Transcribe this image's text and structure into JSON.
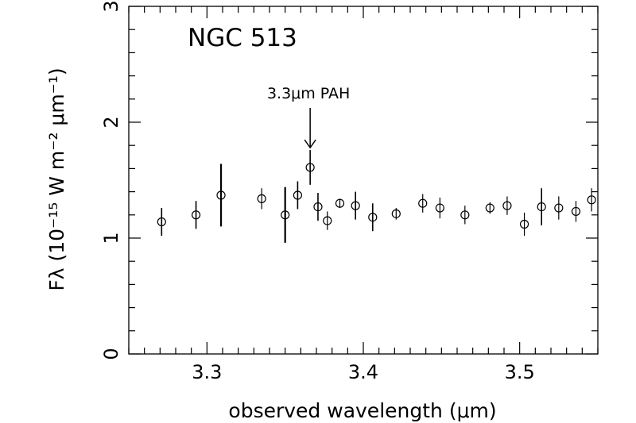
{
  "chart_data": {
    "type": "scatter",
    "title": "NGC 513",
    "xlabel": "observed wavelength (μm)",
    "ylabel": "Fλ (10⁻¹⁵ W m⁻² μm⁻¹)",
    "xlim": [
      3.25,
      3.55
    ],
    "ylim": [
      0,
      3
    ],
    "xticks": [
      "3.3",
      "3.4",
      "3.5"
    ],
    "yticks": [
      "0",
      "1",
      "2",
      "3"
    ],
    "grid": false,
    "annotation": {
      "text": "3.3μm PAH",
      "x": 3.366,
      "y": 1.85,
      "target_y": 1.78
    },
    "points": [
      {
        "x": 3.271,
        "y": 1.14,
        "err": 0.12
      },
      {
        "x": 3.293,
        "y": 1.2,
        "err": 0.12
      },
      {
        "x": 3.309,
        "y": 1.37,
        "err": 0.27
      },
      {
        "x": 3.335,
        "y": 1.34,
        "err": 0.09
      },
      {
        "x": 3.35,
        "y": 1.2,
        "err": 0.24
      },
      {
        "x": 3.358,
        "y": 1.37,
        "err": 0.12
      },
      {
        "x": 3.366,
        "y": 1.61,
        "err": 0.15
      },
      {
        "x": 3.371,
        "y": 1.27,
        "err": 0.12
      },
      {
        "x": 3.377,
        "y": 1.15,
        "err": 0.08
      },
      {
        "x": 3.385,
        "y": 1.3,
        "err": 0.04
      },
      {
        "x": 3.395,
        "y": 1.28,
        "err": 0.12
      },
      {
        "x": 3.406,
        "y": 1.18,
        "err": 0.12
      },
      {
        "x": 3.421,
        "y": 1.21,
        "err": 0.05
      },
      {
        "x": 3.438,
        "y": 1.3,
        "err": 0.08
      },
      {
        "x": 3.449,
        "y": 1.26,
        "err": 0.09
      },
      {
        "x": 3.465,
        "y": 1.2,
        "err": 0.08
      },
      {
        "x": 3.481,
        "y": 1.26,
        "err": 0.05
      },
      {
        "x": 3.492,
        "y": 1.28,
        "err": 0.08
      },
      {
        "x": 3.503,
        "y": 1.12,
        "err": 0.1
      },
      {
        "x": 3.514,
        "y": 1.27,
        "err": 0.16
      },
      {
        "x": 3.525,
        "y": 1.26,
        "err": 0.1
      },
      {
        "x": 3.536,
        "y": 1.23,
        "err": 0.09
      },
      {
        "x": 3.546,
        "y": 1.33,
        "err": 0.1
      }
    ]
  }
}
